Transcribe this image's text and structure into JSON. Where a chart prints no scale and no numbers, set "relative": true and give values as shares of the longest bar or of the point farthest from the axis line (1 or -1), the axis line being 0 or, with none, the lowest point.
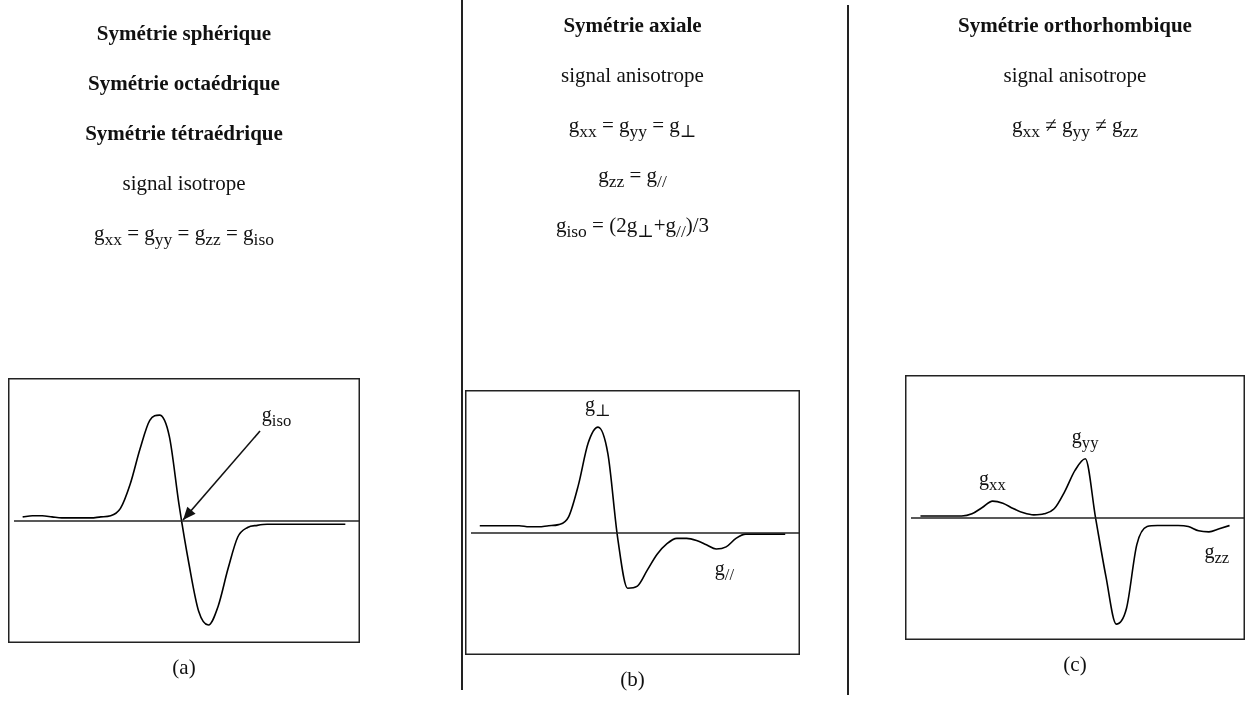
{
  "chart_data": [
    {
      "type": "line",
      "title": "Symétrie sphérique",
      "subtitle": "Symétrie octaédrique",
      "annotations": [
        "Symétrie tétraédrique",
        "signal isotrope",
        "g$_{xx}$ = g$_{yy}$ = g$_{zz}$ = g$_{iso}$",
        "g$_{iso}$"
      ],
      "xlabel": "(a)",
      "relative": true,
      "marker": "none",
      "legend": false,
      "categories": [
        null,
        null,
        null,
        null,
        null,
        null,
        null,
        null,
        null,
        null,
        null,
        null,
        null,
        null,
        null,
        null,
        null,
        null,
        null,
        null,
        null,
        null,
        null,
        null,
        null,
        null,
        null,
        null,
        null,
        null,
        null,
        null,
        null,
        null
      ],
      "series": [
        {
          "color": "#000000",
          "values": [
            0.04,
            0.05,
            0.05,
            0.04,
            0.03,
            0.03,
            0.03,
            0.03,
            0.04,
            0.05,
            0.12,
            0.35,
            0.68,
            0.95,
            1.0,
            0.8,
            0.15,
            -0.4,
            -0.85,
            -0.98,
            -0.8,
            -0.45,
            -0.15,
            -0.06,
            -0.04,
            -0.03,
            -0.03,
            -0.03,
            -0.03,
            -0.03,
            -0.03,
            -0.03,
            -0.03,
            -0.03
          ]
        }
      ]
    },
    {
      "type": "line",
      "title": "Symétrie axiale",
      "subtitle": "signal anisotrope",
      "annotations": [
        "g$_{xx}$ = g$_{yy}$ = g$_{⊥}$",
        "g$_{zz}$ = g$_{//}$",
        "g$_{iso}$ = (2g$_{⊥}$+g$_{//}$)/3",
        {
          "text": "g$_{⊥}$",
          "y": 1.0
        },
        {
          "text": "g$_{//}$",
          "y": -0.15
        }
      ],
      "xlabel": "(b)",
      "relative": true,
      "marker": "none",
      "legend": false,
      "categories": [
        null,
        null,
        null,
        null,
        null,
        null,
        null,
        null,
        null,
        null,
        null,
        null,
        null,
        null,
        null,
        null,
        null,
        null,
        null,
        null,
        null,
        null,
        null,
        null,
        null,
        null,
        null,
        null,
        null,
        null,
        null,
        null
      ],
      "series": [
        {
          "color": "#000000",
          "values": [
            0.07,
            0.07,
            0.07,
            0.07,
            0.07,
            0.06,
            0.06,
            0.07,
            0.08,
            0.15,
            0.45,
            0.85,
            1.0,
            0.75,
            -0.05,
            -0.52,
            -0.5,
            -0.35,
            -0.2,
            -0.1,
            -0.05,
            -0.05,
            -0.07,
            -0.11,
            -0.15,
            -0.13,
            -0.05,
            -0.01,
            -0.01,
            -0.01,
            -0.01,
            -0.01
          ]
        }
      ]
    },
    {
      "type": "line",
      "title": "Symétrie orthorhombique",
      "subtitle": "signal anisotrope",
      "annotations": [
        "g$_{xx}$ ≠ g$_{yy}$ ≠ g$_{zz}$",
        {
          "text": "g$_{xx}$",
          "y": 0.16
        },
        {
          "text": "g$_{yy}$",
          "y": 0.56
        },
        {
          "text": "g$_{zz}$",
          "y": -0.13
        }
      ],
      "xlabel": "(c)",
      "relative": true,
      "marker": "none",
      "legend": false,
      "categories": [
        null,
        null,
        null,
        null,
        null,
        null,
        null,
        null,
        null,
        null,
        null,
        null,
        null,
        null,
        null,
        null,
        null,
        null,
        null,
        null,
        null,
        null,
        null,
        null,
        null,
        null,
        null,
        null,
        null,
        null,
        null
      ],
      "series": [
        {
          "color": "#000000",
          "values": [
            0.02,
            0.02,
            0.02,
            0.02,
            0.02,
            0.04,
            0.1,
            0.16,
            0.14,
            0.09,
            0.05,
            0.03,
            0.04,
            0.09,
            0.25,
            0.45,
            0.56,
            0.0,
            -0.55,
            -1.0,
            -0.85,
            -0.25,
            -0.08,
            -0.07,
            -0.07,
            -0.07,
            -0.08,
            -0.12,
            -0.13,
            -0.1,
            -0.07
          ]
        }
      ]
    }
  ]
}
